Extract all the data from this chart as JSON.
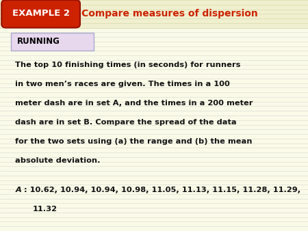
{
  "background_color": "#fafae8",
  "header_bg_color": "#f0f0d0",
  "header_stripe_color": "#d8d8a8",
  "example_box_bg": "#cc2200",
  "example_box_text": "EXAMPLE 2",
  "example_box_text_color": "#ffffff",
  "header_title": "Compare measures of dispersion",
  "header_title_color": "#cc2200",
  "running_box_bg": "#e8d8ee",
  "running_box_border": "#aaaacc",
  "running_label": "RUNNING",
  "running_label_color": "#000000",
  "body_text_color": "#111111",
  "para_lines": [
    "The top 10 finishing times (in seconds) for runners",
    "in two men’s races are given. The times in a 100",
    "meter dash are in set A, and the times in a 200 meter",
    "dash are in set B. Compare the spread of the data",
    "for the two sets using (a) the range and (b) the mean",
    "absolute deviation."
  ],
  "data_label": "A",
  "data_line1": ": 10.62, 10.94, 10.94, 10.98, 11.05, 11.13, 11.15, 11.28, 11.29,",
  "data_line2": "11.32"
}
